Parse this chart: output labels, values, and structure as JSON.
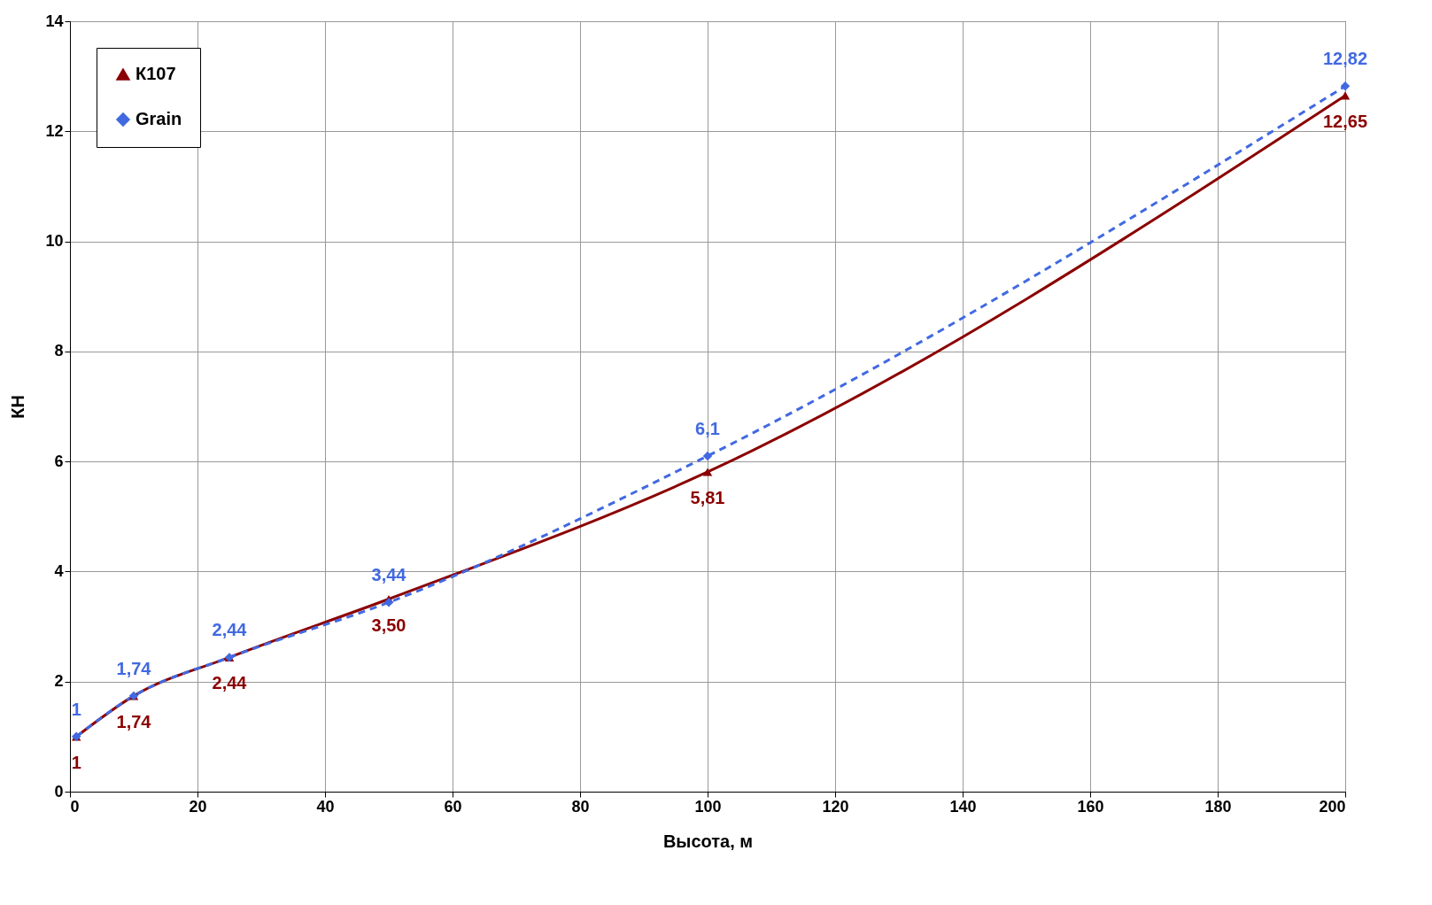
{
  "chart_data": {
    "type": "line",
    "xlabel": "Высота, м",
    "ylabel": "КН",
    "x": [
      1,
      10,
      25,
      50,
      100,
      200
    ],
    "series": [
      {
        "name": "К107",
        "color": "#8b0000",
        "marker": "triangle",
        "line_style": "solid",
        "values": [
          1,
          1.74,
          2.44,
          3.5,
          5.81,
          12.65
        ],
        "value_labels": [
          "1",
          "1,74",
          "2,44",
          "3,50",
          "5,81",
          "12,65"
        ]
      },
      {
        "name": "Grain",
        "color": "#4169e1",
        "marker": "diamond",
        "line_style": "dashed",
        "values": [
          1,
          1.74,
          2.44,
          3.44,
          6.1,
          12.82
        ],
        "value_labels": [
          "1",
          "1,74",
          "2,44",
          "3,44",
          "6,1",
          "12,82"
        ]
      }
    ],
    "xlim": [
      0,
      200
    ],
    "xticks": [
      0,
      20,
      40,
      60,
      80,
      100,
      120,
      140,
      160,
      180,
      200
    ],
    "ylim": [
      0,
      14
    ],
    "yticks": [
      0,
      2,
      4,
      6,
      8,
      10,
      12,
      14
    ],
    "grid": true,
    "legend": "top left"
  }
}
